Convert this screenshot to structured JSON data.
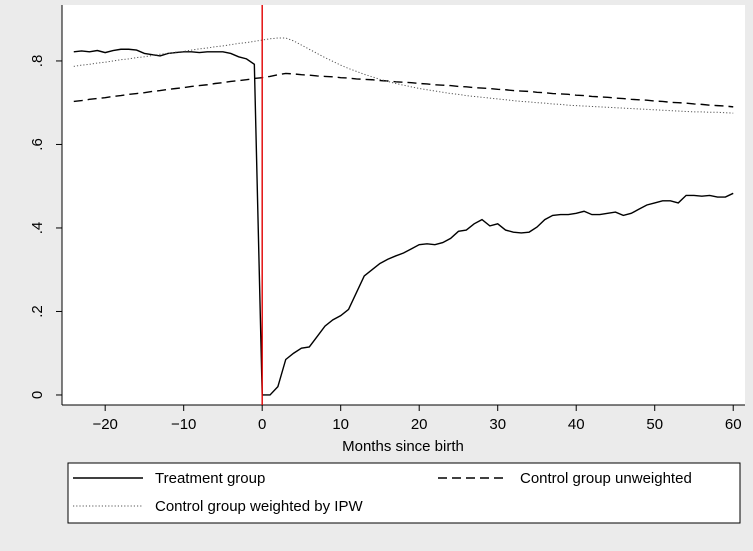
{
  "chart_data": {
    "type": "line",
    "xlabel": "Months since birth",
    "x": [
      -24,
      -23,
      -22,
      -21,
      -20,
      -19,
      -18,
      -17,
      -16,
      -15,
      -14,
      -13,
      -12,
      -11,
      -10,
      -9,
      -8,
      -7,
      -6,
      -5,
      -4,
      -3,
      -2,
      -1,
      0,
      1,
      2,
      3,
      4,
      5,
      6,
      7,
      8,
      9,
      10,
      11,
      12,
      13,
      14,
      15,
      16,
      17,
      18,
      19,
      20,
      21,
      22,
      23,
      24,
      25,
      26,
      27,
      28,
      29,
      30,
      31,
      32,
      33,
      34,
      35,
      36,
      37,
      38,
      39,
      40,
      41,
      42,
      43,
      44,
      45,
      46,
      47,
      48,
      49,
      50,
      51,
      52,
      53,
      54,
      55,
      56,
      57,
      58,
      59,
      60
    ],
    "series": [
      {
        "name": "Treatment group",
        "color": "#000000",
        "style": "solid",
        "values": [
          0.822,
          0.824,
          0.822,
          0.825,
          0.82,
          0.825,
          0.828,
          0.828,
          0.826,
          0.818,
          0.815,
          0.812,
          0.818,
          0.82,
          0.822,
          0.822,
          0.82,
          0.822,
          0.822,
          0.822,
          0.818,
          0.81,
          0.805,
          0.792,
          0,
          0,
          0.02,
          0.085,
          0.1,
          0.112,
          0.115,
          0.14,
          0.165,
          0.18,
          0.19,
          0.205,
          0.245,
          0.285,
          0.3,
          0.315,
          0.325,
          0.333,
          0.34,
          0.35,
          0.36,
          0.362,
          0.36,
          0.365,
          0.375,
          0.392,
          0.395,
          0.41,
          0.42,
          0.405,
          0.41,
          0.395,
          0.39,
          0.388,
          0.39,
          0.402,
          0.42,
          0.43,
          0.432,
          0.432,
          0.435,
          0.44,
          0.432,
          0.432,
          0.435,
          0.438,
          0.43,
          0.435,
          0.445,
          0.455,
          0.46,
          0.465,
          0.465,
          0.46,
          0.478,
          0.478,
          0.476,
          0.478,
          0.474,
          0.474,
          0.483
        ]
      },
      {
        "name": "Control group unweighted",
        "color": "#000000",
        "style": "dash",
        "values": [
          0.703,
          0.705,
          0.708,
          0.71,
          0.712,
          0.715,
          0.717,
          0.72,
          0.722,
          0.724,
          0.727,
          0.729,
          0.732,
          0.734,
          0.736,
          0.739,
          0.741,
          0.743,
          0.746,
          0.748,
          0.751,
          0.753,
          0.755,
          0.758,
          0.76,
          0.763,
          0.767,
          0.77,
          0.769,
          0.767,
          0.766,
          0.764,
          0.763,
          0.762,
          0.76,
          0.759,
          0.757,
          0.756,
          0.755,
          0.753,
          0.752,
          0.75,
          0.749,
          0.748,
          0.746,
          0.745,
          0.743,
          0.742,
          0.741,
          0.739,
          0.738,
          0.736,
          0.735,
          0.734,
          0.732,
          0.731,
          0.729,
          0.728,
          0.727,
          0.725,
          0.724,
          0.722,
          0.721,
          0.72,
          0.718,
          0.717,
          0.715,
          0.714,
          0.713,
          0.711,
          0.71,
          0.708,
          0.707,
          0.706,
          0.704,
          0.703,
          0.701,
          0.7,
          0.699,
          0.697,
          0.696,
          0.694,
          0.693,
          0.692,
          0.69
        ]
      },
      {
        "name": "Control group weighted by IPW",
        "color": "#555555",
        "style": "dot",
        "values": [
          0.787,
          0.79,
          0.792,
          0.795,
          0.797,
          0.8,
          0.803,
          0.805,
          0.808,
          0.81,
          0.813,
          0.816,
          0.818,
          0.821,
          0.823,
          0.826,
          0.829,
          0.831,
          0.834,
          0.836,
          0.839,
          0.842,
          0.844,
          0.847,
          0.85,
          0.853,
          0.855,
          0.855,
          0.848,
          0.838,
          0.828,
          0.818,
          0.808,
          0.799,
          0.79,
          0.782,
          0.775,
          0.768,
          0.762,
          0.756,
          0.751,
          0.746,
          0.742,
          0.738,
          0.734,
          0.731,
          0.728,
          0.725,
          0.722,
          0.72,
          0.717,
          0.715,
          0.713,
          0.711,
          0.709,
          0.707,
          0.705,
          0.703,
          0.702,
          0.7,
          0.699,
          0.697,
          0.696,
          0.694,
          0.693,
          0.692,
          0.691,
          0.69,
          0.689,
          0.688,
          0.687,
          0.686,
          0.685,
          0.684,
          0.683,
          0.682,
          0.681,
          0.68,
          0.679,
          0.678,
          0.678,
          0.677,
          0.677,
          0.676,
          0.675
        ]
      }
    ],
    "xlim": [
      -25.5,
      61.5
    ],
    "xticks": [
      {
        "value": -20,
        "label": "−20"
      },
      {
        "value": -10,
        "label": "−10"
      },
      0,
      10,
      20,
      30,
      40,
      50,
      60
    ],
    "ylim": [
      -0.024,
      0.934
    ],
    "yticks": [
      0,
      {
        "value": 0.2,
        "label": ".2"
      },
      {
        "value": 0.4,
        "label": ".4"
      },
      {
        "value": 0.6,
        "label": ".6"
      },
      {
        "value": 0.8,
        "label": ".8"
      }
    ],
    "xline": {
      "value": 0,
      "color": "#e00000"
    },
    "legend": "bottom",
    "legend_columns": 2
  }
}
